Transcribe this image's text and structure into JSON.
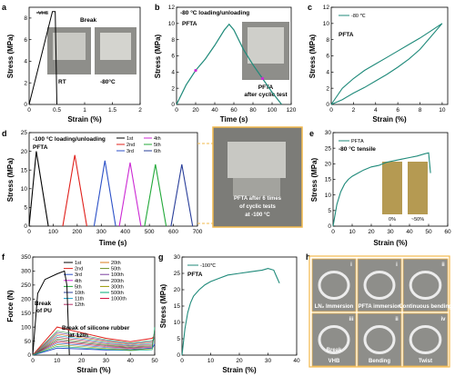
{
  "panels": {
    "a": {
      "label": "a",
      "ylabel": "Stress (MPa)",
      "xlabel": "Strain (%)",
      "legend": "VHB",
      "break_label": "Break",
      "photo_labels": [
        "RT",
        "-80°C"
      ]
    },
    "b": {
      "label": "b",
      "ylabel": "Stress (MPa)",
      "xlabel": "Time (s)",
      "title": "-80 °C loading/unloading",
      "series_label": "PFTA",
      "photo_caption": [
        "PFTA",
        "after cyclic test"
      ]
    },
    "c": {
      "label": "c",
      "ylabel": "Stress (MPa)",
      "xlabel": "Strain (%)",
      "legend": "-80 ℃",
      "series_label": "PFTA"
    },
    "d": {
      "label": "d",
      "ylabel": "Stress (MPa)",
      "xlabel": "Time (s)",
      "title": "-100 °C loading/unloading",
      "series_label": "PFTA",
      "cycle_labels": [
        "1st",
        "2nd",
        "3rd",
        "4th",
        "5th",
        "6th"
      ],
      "photo_caption": [
        "PFTA after 6 times",
        "of cyclic tests",
        "at -100 °C"
      ]
    },
    "e": {
      "label": "e",
      "ylabel": "Stress (MPa)",
      "xlabel": "Strain (%)",
      "legend": "PFTA",
      "subtitle": "-80 °C tensile",
      "photo_labels": [
        "0%",
        "~50%"
      ]
    },
    "f": {
      "label": "f",
      "ylabel": "Force (N)",
      "xlabel": "Strain (%)",
      "legend_left": [
        "1st",
        "2nd",
        "3rd",
        "4th",
        "5th",
        "10th",
        "11th",
        "12th"
      ],
      "legend_right": [
        "20th",
        "50th",
        "100th",
        "200th",
        "300th",
        "500th",
        "1000th"
      ],
      "annot_pu": [
        "Break",
        "of PU"
      ],
      "annot_silicone": [
        "Break of silicone rubber",
        "at 12th"
      ]
    },
    "g": {
      "label": "g",
      "ylabel": "Stress (MPa)",
      "xlabel": "Strain (%)",
      "legend": "-100℃",
      "series_label": "PFTA"
    },
    "h": {
      "label": "h",
      "photos": [
        "LN₂ Immersion",
        "PFTA immersion",
        "Continuous bending",
        "Break",
        "VHB",
        "Bending",
        "Twist"
      ],
      "roman": [
        "i",
        "i",
        "ii",
        "iii",
        "ii",
        "iv"
      ]
    }
  },
  "colors": {
    "pfta": "#1f8a7a",
    "black": "#000000",
    "red": "#e0201b",
    "blue": "#2d52c8",
    "magenta": "#cc2ad4",
    "green": "#23a93a",
    "navy": "#2a3f9a",
    "cyan": "#1aa1c9",
    "photo_bg": "#8e8e8a",
    "photo_frame": "#f2b84b"
  },
  "chart_data": [
    {
      "type": "line",
      "panel": "a",
      "x": [
        0,
        0.42,
        0.47,
        0.5
      ],
      "y": [
        0,
        8.6,
        8.6,
        0
      ],
      "xlim": [
        0,
        2.0
      ],
      "ylim": [
        0,
        9
      ],
      "xticks": [
        0,
        0.5,
        1.0,
        1.5,
        2.0
      ],
      "yticks": [
        0,
        2,
        4,
        6,
        8
      ],
      "series": [
        {
          "name": "VHB"
        }
      ]
    },
    {
      "type": "line",
      "panel": "b",
      "x": [
        0,
        10,
        20,
        30,
        40,
        50,
        55,
        60,
        70,
        80,
        90,
        100,
        110
      ],
      "y": [
        0,
        2.4,
        4.2,
        5.6,
        7.3,
        9.2,
        9.9,
        9.2,
        6.8,
        4.9,
        3.2,
        1.5,
        0
      ],
      "xlim": [
        0,
        120
      ],
      "ylim": [
        0,
        12
      ],
      "xticks": [
        0,
        20,
        40,
        60,
        80,
        100,
        120
      ],
      "yticks": [
        0,
        2,
        4,
        6,
        8,
        10,
        12
      ]
    },
    {
      "type": "line",
      "panel": "c",
      "x": [
        0,
        1,
        2,
        3,
        4,
        5,
        6,
        7,
        8,
        9,
        10,
        9,
        8,
        7,
        6,
        5,
        4,
        3,
        2,
        1,
        0
      ],
      "y": [
        0,
        2.0,
        3.2,
        4.2,
        5.0,
        5.8,
        6.6,
        7.4,
        8.2,
        9.1,
        10,
        8.4,
        6.8,
        5.6,
        4.6,
        3.7,
        2.9,
        2.1,
        1.4,
        0.6,
        0
      ],
      "xlim": [
        0,
        10.5
      ],
      "ylim": [
        0,
        12
      ],
      "xticks": [
        0,
        2,
        4,
        6,
        8,
        10
      ],
      "yticks": [
        0,
        2,
        4,
        6,
        8,
        10,
        12
      ],
      "series": [
        {
          "name": "-80 ℃"
        }
      ]
    },
    {
      "type": "line",
      "panel": "d",
      "xlim": [
        0,
        700
      ],
      "ylim": [
        0,
        25
      ],
      "xticks": [
        0,
        100,
        200,
        300,
        400,
        500,
        600,
        700
      ],
      "yticks": [
        0,
        5,
        10,
        15,
        20,
        25
      ],
      "series": [
        {
          "name": "1st",
          "x": [
            0,
            30,
            80
          ],
          "y": [
            0,
            20,
            0
          ]
        },
        {
          "name": "2nd",
          "x": [
            140,
            190,
            240
          ],
          "y": [
            0,
            19,
            0
          ]
        },
        {
          "name": "3rd",
          "x": [
            270,
            315,
            360
          ],
          "y": [
            0,
            17.5,
            0
          ]
        },
        {
          "name": "4th",
          "x": [
            375,
            420,
            465
          ],
          "y": [
            0,
            17,
            0
          ]
        },
        {
          "name": "5th",
          "x": [
            480,
            525,
            570
          ],
          "y": [
            0,
            16.5,
            0
          ]
        },
        {
          "name": "6th",
          "x": [
            590,
            635,
            680
          ],
          "y": [
            0,
            16.5,
            0
          ]
        }
      ]
    },
    {
      "type": "line",
      "panel": "e",
      "x": [
        0,
        2,
        4,
        6,
        8,
        10,
        13,
        16,
        20,
        24,
        28,
        32,
        36,
        40,
        44,
        48,
        50,
        51
      ],
      "y": [
        0,
        7,
        11,
        13.5,
        15,
        16,
        17,
        18,
        19,
        19.5,
        20.5,
        21,
        21.5,
        22,
        22.5,
        23.2,
        23.5,
        17
      ],
      "xlim": [
        0,
        60
      ],
      "ylim": [
        0,
        30
      ],
      "xticks": [
        0,
        10,
        20,
        30,
        40,
        50,
        60
      ],
      "yticks": [
        0,
        5,
        10,
        15,
        20,
        25,
        30
      ],
      "series": [
        {
          "name": "PFTA"
        }
      ]
    },
    {
      "type": "line",
      "panel": "f",
      "xlim": [
        0,
        50
      ],
      "ylim": [
        0,
        350
      ],
      "xticks": [
        0,
        10,
        20,
        30,
        40,
        50
      ],
      "yticks": [
        0,
        50,
        100,
        150,
        200,
        250,
        300,
        350
      ],
      "series": [
        {
          "name": "1st",
          "x": [
            0,
            2,
            5,
            10,
            13,
            14,
            15
          ],
          "y": [
            0,
            220,
            270,
            290,
            300,
            250,
            0
          ]
        },
        {
          "name": "2nd",
          "x": [
            0,
            10,
            20,
            30,
            40,
            49,
            50
          ],
          "y": [
            0,
            100,
            80,
            60,
            48,
            60,
            70
          ]
        },
        {
          "name": "1000th",
          "x": [
            0,
            10,
            20,
            30,
            40,
            49,
            50
          ],
          "y": [
            0,
            25,
            22,
            18,
            18,
            25,
            40
          ]
        }
      ]
    },
    {
      "type": "line",
      "panel": "g",
      "x": [
        0,
        1,
        2,
        3,
        4,
        6,
        8,
        10,
        13,
        16,
        20,
        24,
        28,
        30,
        32,
        33,
        34
      ],
      "y": [
        0,
        8,
        13,
        16,
        18,
        20,
        21.5,
        22.5,
        23.5,
        24.5,
        25,
        25.5,
        26,
        26.5,
        26,
        24,
        22
      ],
      "xlim": [
        0,
        40
      ],
      "ylim": [
        0,
        30
      ],
      "xticks": [
        0,
        10,
        20,
        30,
        40
      ],
      "yticks": [
        0,
        5,
        10,
        15,
        20,
        25,
        30
      ],
      "series": [
        {
          "name": "-100℃"
        }
      ]
    }
  ]
}
